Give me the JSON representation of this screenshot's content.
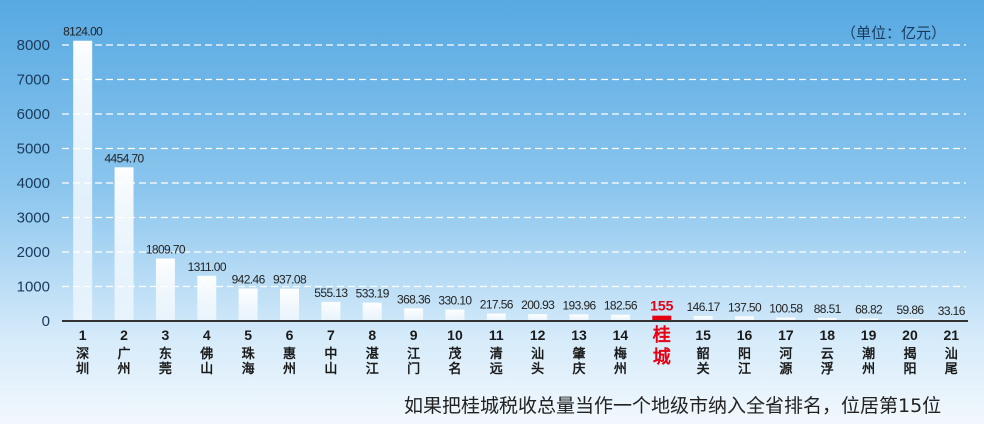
{
  "unit_label": "（单位：亿元）",
  "footnote": "如果把桂城税收总量当作一个地级市纳入全省排名，位居第15位",
  "chart_data": {
    "type": "bar",
    "title": "",
    "xlabel": "",
    "ylabel": "",
    "ylim": [
      0,
      8000
    ],
    "yticks": [
      0,
      1000,
      2000,
      3000,
      4000,
      5000,
      6000,
      7000,
      8000
    ],
    "grid": true,
    "highlight_color": "#e60012",
    "bars": [
      {
        "rank": "1",
        "name": "深圳",
        "value": 8124.0,
        "label": "8124.00"
      },
      {
        "rank": "2",
        "name": "广州",
        "value": 4454.7,
        "label": "4454.70"
      },
      {
        "rank": "3",
        "name": "东莞",
        "value": 1809.7,
        "label": "1809.70"
      },
      {
        "rank": "4",
        "name": "佛山",
        "value": 1311.0,
        "label": "1311.00"
      },
      {
        "rank": "5",
        "name": "珠海",
        "value": 942.46,
        "label": "942.46"
      },
      {
        "rank": "6",
        "name": "惠州",
        "value": 937.08,
        "label": "937.08"
      },
      {
        "rank": "7",
        "name": "中山",
        "value": 555.13,
        "label": "555.13"
      },
      {
        "rank": "8",
        "name": "湛江",
        "value": 533.19,
        "label": "533.19"
      },
      {
        "rank": "9",
        "name": "江门",
        "value": 368.36,
        "label": "368.36"
      },
      {
        "rank": "10",
        "name": "茂名",
        "value": 330.1,
        "label": "330.10"
      },
      {
        "rank": "11",
        "name": "清远",
        "value": 217.56,
        "label": "217.56"
      },
      {
        "rank": "12",
        "name": "汕头",
        "value": 200.93,
        "label": "200.93"
      },
      {
        "rank": "13",
        "name": "肇庆",
        "value": 193.96,
        "label": "193.96"
      },
      {
        "rank": "14",
        "name": "梅州",
        "value": 182.56,
        "label": "182.56"
      },
      {
        "rank": "",
        "name": "桂城",
        "value": 155,
        "label": "155",
        "highlight": true
      },
      {
        "rank": "15",
        "name": "韶关",
        "value": 146.17,
        "label": "146.17"
      },
      {
        "rank": "16",
        "name": "阳江",
        "value": 137.5,
        "label": "137.50"
      },
      {
        "rank": "17",
        "name": "河源",
        "value": 100.58,
        "label": "100.58"
      },
      {
        "rank": "18",
        "name": "云浮",
        "value": 88.51,
        "label": "88.51"
      },
      {
        "rank": "19",
        "name": "潮州",
        "value": 68.82,
        "label": "68.82"
      },
      {
        "rank": "20",
        "name": "揭阳",
        "value": 59.86,
        "label": "59.86"
      },
      {
        "rank": "21",
        "name": "汕尾",
        "value": 33.16,
        "label": "33.16"
      }
    ]
  }
}
